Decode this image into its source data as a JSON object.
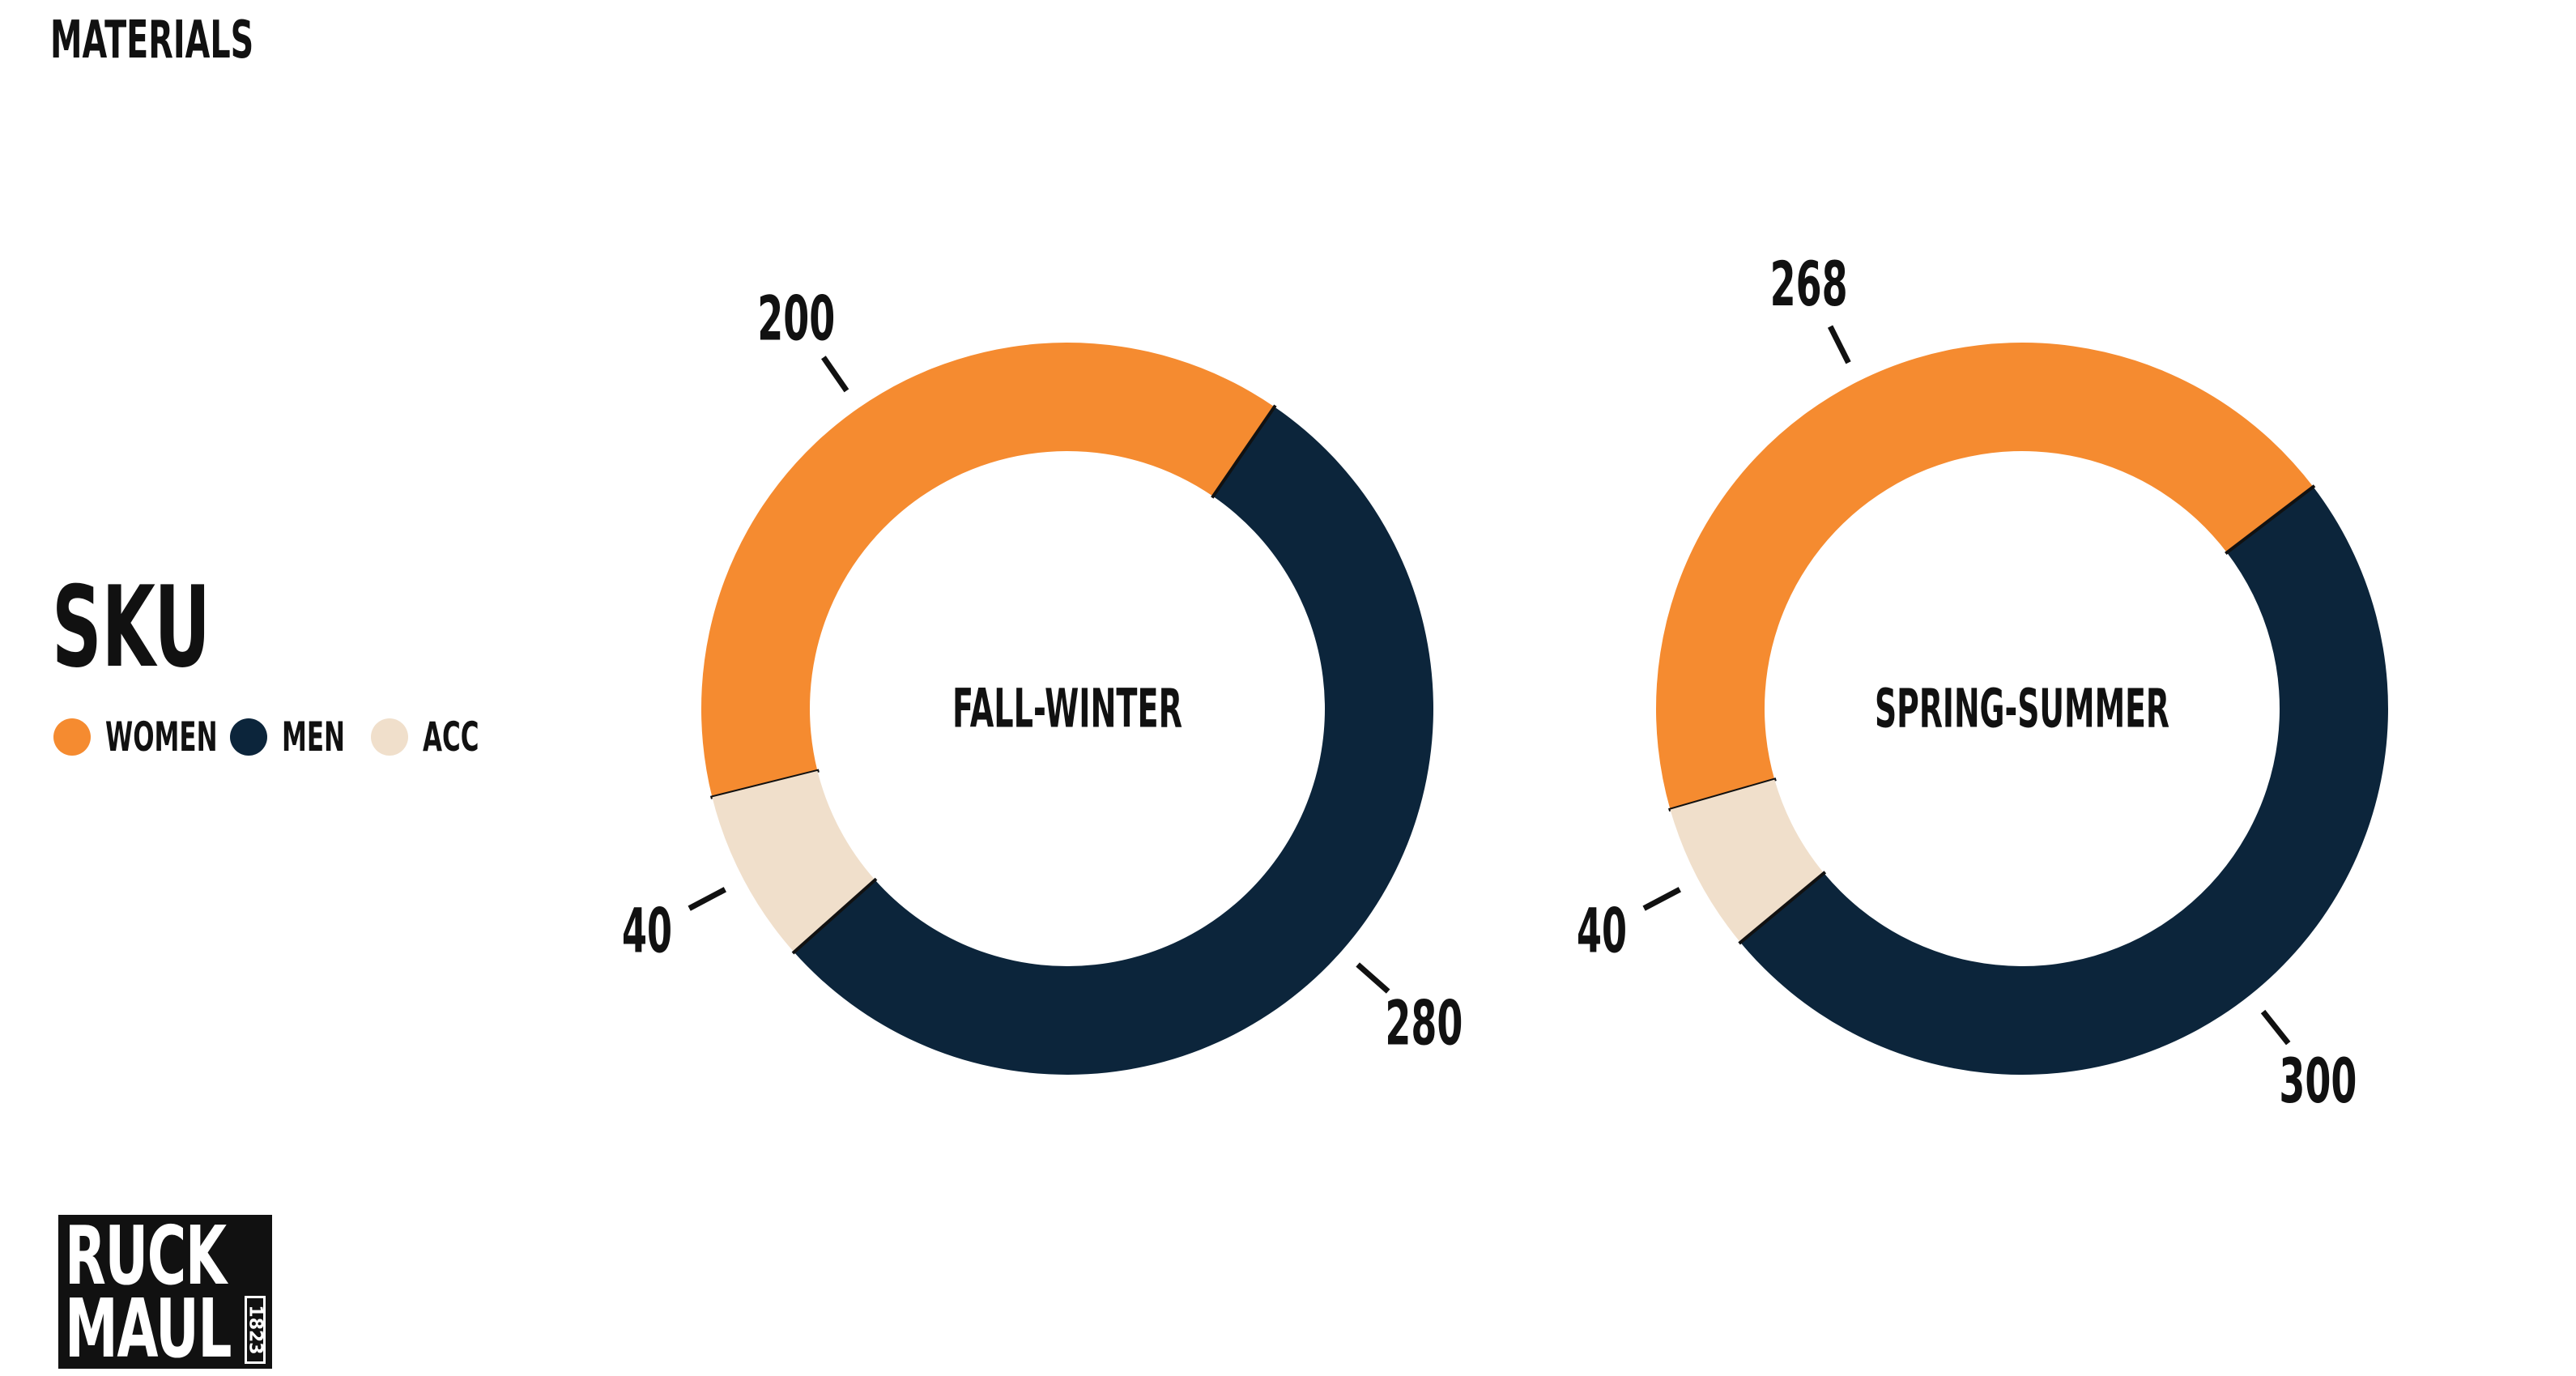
{
  "page": {
    "section_title": "MATERIALS"
  },
  "chart_data": {
    "type": "pie",
    "variant": "donut",
    "title": "SKU",
    "legend": {
      "placement": "left",
      "entries": [
        {
          "name": "WOMEN",
          "color": "#f58b30"
        },
        {
          "name": "MEN",
          "color": "#0c253b"
        },
        {
          "name": "ACC",
          "color": "#f0dfcb"
        }
      ]
    },
    "charts": [
      {
        "center_label": "FALL-WINTER",
        "slices": [
          {
            "name": "WOMEN",
            "value": 200,
            "color": "#f58b30"
          },
          {
            "name": "MEN",
            "value": 280,
            "color": "#0c253b"
          },
          {
            "name": "ACC",
            "value": 40,
            "color": "#f0dfcb"
          }
        ]
      },
      {
        "center_label": "SPRING-SUMMER",
        "slices": [
          {
            "name": "WOMEN",
            "value": 268,
            "color": "#f58b30"
          },
          {
            "name": "MEN",
            "value": 300,
            "color": "#0c253b"
          },
          {
            "name": "ACC",
            "value": 40,
            "color": "#f0dfcb"
          }
        ]
      }
    ]
  },
  "logo": {
    "line1": "RUCK",
    "line2": "MAUL",
    "year": "1823"
  }
}
